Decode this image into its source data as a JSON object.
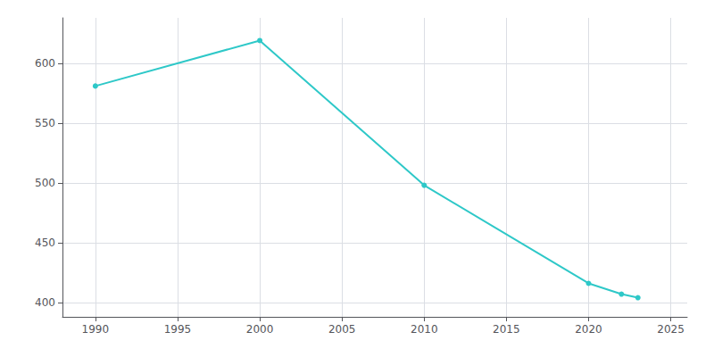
{
  "chart_data": {
    "type": "line",
    "x": [
      1990,
      2000,
      2010,
      2020,
      2022,
      2023
    ],
    "values": [
      581,
      619,
      498,
      416,
      407,
      404
    ],
    "color": "#2ec8c8",
    "marker": "circle",
    "xlim": [
      1988,
      2026
    ],
    "ylim": [
      388,
      638
    ],
    "xticks": [
      1990,
      1995,
      2000,
      2005,
      2010,
      2015,
      2020,
      2025
    ],
    "yticks": [
      400,
      450,
      500,
      550,
      600
    ],
    "grid": true
  }
}
